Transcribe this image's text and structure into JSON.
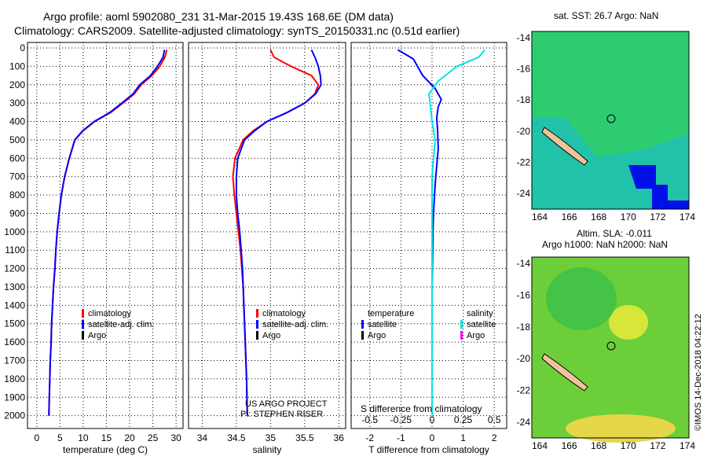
{
  "header": {
    "line1": "Argo profile: aoml 5902080_231 31-Mar-2015 19.43S 168.6E (DM data)",
    "line2": "Climatology: CARS2009. Satellite-adjusted climatology: synTS_20150331.nc (0.51d earlier)"
  },
  "colors": {
    "climatology": "#ff0000",
    "satellite_adj": "#0000ff",
    "argo": "#000000",
    "satellite_salinity": "#00e5e5",
    "argo_salinity": "#ff00ff"
  },
  "chart_data": [
    {
      "type": "line",
      "xlabel": "temperature (deg C)",
      "xlim": [
        -2,
        31.5
      ],
      "xticks": [
        0,
        5,
        10,
        15,
        20,
        25,
        30
      ],
      "ylim": [
        2070,
        0
      ],
      "yticks": [
        0,
        100,
        200,
        300,
        400,
        500,
        600,
        700,
        800,
        900,
        1000,
        1100,
        1200,
        1300,
        1400,
        1500,
        1600,
        1700,
        1800,
        1900,
        2000
      ],
      "legend": [
        "climatology",
        "satellite-adj. clim.",
        "Argo"
      ],
      "series": [
        {
          "name": "climatology",
          "x": [
            28,
            27.6,
            26.5,
            24.8,
            22.5,
            21,
            18.5,
            16,
            12.5,
            10,
            8.2,
            7,
            6,
            5.3,
            4.8,
            4.4,
            4.1,
            3.9,
            3.6,
            3.4,
            3.2,
            3.1,
            2.9,
            2.8,
            2.7,
            2.6
          ],
          "y": [
            10,
            50,
            100,
            150,
            200,
            250,
            300,
            350,
            400,
            450,
            500,
            600,
            700,
            800,
            900,
            1000,
            1100,
            1200,
            1300,
            1400,
            1500,
            1600,
            1700,
            1800,
            1900,
            2000
          ]
        },
        {
          "name": "satellite-adj. clim.",
          "x": [
            27.5,
            27.2,
            26,
            24.5,
            22.2,
            20.7,
            18.3,
            15.8,
            12.4,
            9.9,
            8.2,
            7,
            6,
            5.3,
            4.8,
            4.4,
            4.1,
            3.9,
            3.6,
            3.4,
            3.2,
            3.1,
            2.9,
            2.8,
            2.7,
            2.6
          ],
          "y": [
            10,
            50,
            100,
            150,
            200,
            250,
            300,
            350,
            400,
            450,
            500,
            600,
            700,
            800,
            900,
            1000,
            1100,
            1200,
            1300,
            1400,
            1500,
            1600,
            1700,
            1800,
            1900,
            2000
          ]
        }
      ]
    },
    {
      "type": "line",
      "xlabel": "salinity",
      "xlim": [
        33.8,
        36.1
      ],
      "xticks": [
        34,
        34.5,
        35,
        35.5,
        36
      ],
      "ylim": [
        2070,
        0
      ],
      "legend": [
        "climatology",
        "satellite-adj. clim.",
        "Argo"
      ],
      "credit": [
        "US ARGO PROJECT",
        "PI: STEPHEN RISER"
      ],
      "series": [
        {
          "name": "climatology",
          "x": [
            35,
            35.05,
            35.3,
            35.6,
            35.7,
            35.65,
            35.5,
            35.25,
            34.95,
            34.75,
            34.6,
            34.48,
            34.45,
            34.47,
            34.5,
            34.53,
            34.56,
            34.58,
            34.6,
            34.61,
            34.62,
            34.63,
            34.64,
            34.65,
            34.66
          ],
          "y": [
            10,
            50,
            100,
            150,
            200,
            250,
            300,
            350,
            400,
            450,
            500,
            600,
            700,
            800,
            900,
            1000,
            1100,
            1200,
            1300,
            1400,
            1500,
            1600,
            1700,
            1800,
            2000
          ]
        },
        {
          "name": "satellite-adj. clim.",
          "x": [
            35.6,
            35.65,
            35.7,
            35.73,
            35.74,
            35.66,
            35.5,
            35.25,
            34.95,
            34.77,
            34.62,
            34.52,
            34.5,
            34.5,
            34.52,
            34.55,
            34.57,
            34.59,
            34.6,
            34.61,
            34.62,
            34.63,
            34.64,
            34.65,
            34.66
          ],
          "y": [
            10,
            50,
            100,
            150,
            200,
            250,
            300,
            350,
            400,
            450,
            500,
            600,
            700,
            800,
            900,
            1000,
            1100,
            1200,
            1300,
            1400,
            1500,
            1600,
            1700,
            1800,
            2000
          ]
        }
      ]
    },
    {
      "type": "line",
      "xlabel": "T difference from climatology",
      "xlim": [
        -2.6,
        2.4
      ],
      "xticks": [
        -2,
        -1,
        0,
        1,
        2
      ],
      "top_label": "S difference from climatology",
      "top_ticks": [
        "-0.5",
        "-0.25",
        "0",
        "0.25",
        "0.5"
      ],
      "ylim": [
        2070,
        0
      ],
      "legend_left": [
        "temperature",
        "satellite",
        "Argo"
      ],
      "legend_right": [
        "salinity",
        "satellite",
        "Argo"
      ],
      "series": [
        {
          "name": "satellite",
          "x": [
            -1.1,
            -0.6,
            -0.3,
            0.1,
            0.3,
            0.2,
            0.15,
            0.18,
            0.2,
            0.12,
            0.08,
            0.05,
            0.03,
            0.02,
            0.01,
            0.0,
            0.0,
            0.0,
            0.0
          ],
          "y": [
            10,
            60,
            150,
            220,
            280,
            320,
            380,
            450,
            550,
            700,
            800,
            900,
            1000,
            1100,
            1200,
            1300,
            1400,
            1500,
            1600
          ]
        },
        {
          "name": "satellite",
          "x": [
            1.7,
            1.5,
            0.8,
            0.2,
            -0.1,
            -0.05,
            0.0,
            0.1,
            0.05,
            0.0,
            0.0,
            0.0,
            0.0,
            0.0,
            0.0,
            0.0,
            0.0,
            0.0
          ],
          "y": [
            10,
            50,
            100,
            180,
            250,
            320,
            400,
            500,
            600,
            700,
            800,
            900,
            1000,
            1200,
            1400,
            1600,
            1800,
            2000
          ]
        }
      ]
    }
  ],
  "maps": {
    "top_title": "sat. SST: 26.7 Argo: NaN",
    "bottom_title1": "Altim. SLA: -0.011",
    "bottom_title2": "Argo h1000: NaN h2000: NaN",
    "xticks": [
      "164",
      "166",
      "168",
      "170",
      "172",
      "174"
    ],
    "yticks": [
      "-14",
      "-16",
      "-18",
      "-20",
      "-22",
      "-24"
    ]
  },
  "watermark": "©IMOS 14-Dec-2018 04:22:12"
}
